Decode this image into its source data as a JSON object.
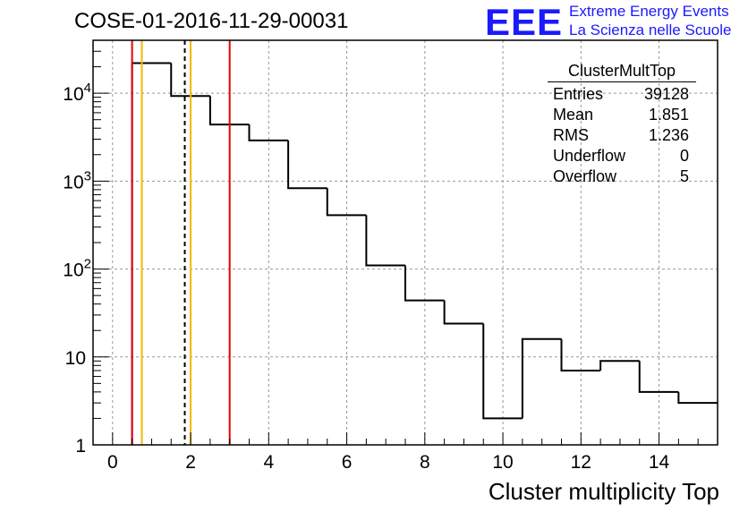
{
  "title": "COSE-01-2016-11-29-00031",
  "logo": {
    "mark": "EEE",
    "line1": "Extreme Energy Events",
    "line2": "La Scienza nelle Scuole",
    "color": "#1a1aff"
  },
  "stats": {
    "name": "ClusterMultTop",
    "rows": [
      {
        "label": "Entries",
        "value": "39128"
      },
      {
        "label": "Mean",
        "value": "1.851"
      },
      {
        "label": "RMS",
        "value": "1.236"
      },
      {
        "label": "Underflow",
        "value": "0"
      },
      {
        "label": "Overflow",
        "value": "5"
      }
    ]
  },
  "chart_data": {
    "type": "histogram",
    "title": "COSE-01-2016-11-29-00031",
    "xlabel": "Cluster multiplicity Top",
    "ylabel": "",
    "xlim": [
      -0.5,
      15.5
    ],
    "ylim": [
      1,
      40000
    ],
    "yscale": "log",
    "grid": true,
    "x_ticks": [
      0,
      2,
      4,
      6,
      8,
      10,
      12,
      14
    ],
    "y_ticks": [
      {
        "value": 1,
        "label": "1"
      },
      {
        "value": 10,
        "label": "10"
      },
      {
        "value": 100,
        "label": "10",
        "exp": "2"
      },
      {
        "value": 1000,
        "label": "10",
        "exp": "3"
      },
      {
        "value": 10000,
        "label": "10",
        "exp": "4"
      }
    ],
    "bins": [
      {
        "x": 0,
        "value": 0
      },
      {
        "x": 1,
        "value": 22000
      },
      {
        "x": 2,
        "value": 9300
      },
      {
        "x": 3,
        "value": 4400
      },
      {
        "x": 4,
        "value": 2900
      },
      {
        "x": 5,
        "value": 830
      },
      {
        "x": 6,
        "value": 410
      },
      {
        "x": 7,
        "value": 110
      },
      {
        "x": 8,
        "value": 44
      },
      {
        "x": 9,
        "value": 24
      },
      {
        "x": 10,
        "value": 2
      },
      {
        "x": 11,
        "value": 16
      },
      {
        "x": 12,
        "value": 7
      },
      {
        "x": 13,
        "value": 9
      },
      {
        "x": 14,
        "value": 4
      },
      {
        "x": 15,
        "value": 3
      }
    ],
    "vertical_lines": [
      {
        "x": 0.5,
        "color": "#e8000b",
        "style": "solid"
      },
      {
        "x": 0.75,
        "color": "#f5b800",
        "style": "solid"
      },
      {
        "x": 1.85,
        "color": "#000000",
        "style": "dashed"
      },
      {
        "x": 2.0,
        "color": "#f5b800",
        "style": "solid"
      },
      {
        "x": 3.0,
        "color": "#e8000b",
        "style": "solid"
      }
    ]
  }
}
